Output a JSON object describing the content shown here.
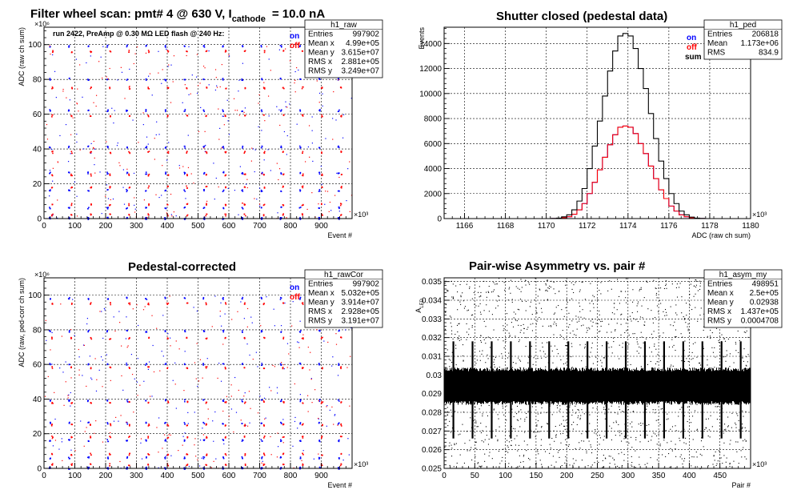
{
  "chart_data": [
    {
      "type": "scatter",
      "title": "Filter wheel scan: pmt#   4 @   630 V, I",
      "title_sub": "cathode",
      "title_tail": "= 10.0 nA",
      "annotation": "run 2422, PreAmp @ 0.30 MΩ   LED flash @  240 Hz:",
      "xlabel": "Event #",
      "ylabel": "ADC (raw ch sum)",
      "x_multiplier": "×10³",
      "y_multiplier": "×10⁶",
      "xlim": [
        0,
        1000
      ],
      "ylim": [
        0,
        110
      ],
      "xticks": [
        "0",
        "100",
        "200",
        "300",
        "400",
        "500",
        "600",
        "700",
        "800",
        "900"
      ],
      "xtick_values": [
        0,
        100,
        200,
        300,
        400,
        500,
        600,
        700,
        800,
        900
      ],
      "yticks": [
        "0",
        "20",
        "40",
        "60",
        "80",
        "100"
      ],
      "ytick_values": [
        0,
        20,
        40,
        60,
        80,
        100
      ],
      "grid": true,
      "legend": [
        "on",
        "off"
      ],
      "stats": {
        "name": "h1_raw",
        "rows": [
          [
            "Entries",
            "997902"
          ],
          [
            "Mean x",
            "4.99e+05"
          ],
          [
            "Mean y",
            "3.615e+07"
          ],
          [
            "RMS x",
            "2.881e+05"
          ],
          [
            "RMS y",
            "3.249e+07"
          ]
        ]
      },
      "series": [
        {
          "name": "on",
          "color": "#0000ff",
          "levels": [
            0,
            6,
            16,
            26,
            41,
            62,
            80,
            99
          ]
        },
        {
          "name": "off",
          "color": "#ff0000",
          "levels": [
            2,
            8,
            18,
            25,
            38,
            59,
            75,
            96
          ]
        }
      ],
      "step_events": 62.5
    },
    {
      "type": "line",
      "title": "Shutter closed (pedestal data)",
      "xlabel": "ADC (raw ch sum)",
      "ylabel": "Events",
      "x_multiplier": "×10³",
      "xlim": [
        1165,
        1180
      ],
      "ylim": [
        0,
        15300
      ],
      "xticks": [
        "1166",
        "1168",
        "1170",
        "1172",
        "1174",
        "1176",
        "1178",
        "1180"
      ],
      "xtick_values": [
        1166,
        1168,
        1170,
        1172,
        1174,
        1176,
        1178,
        1180
      ],
      "yticks": [
        "0",
        "2000",
        "4000",
        "6000",
        "8000",
        "10000",
        "12000",
        "14000"
      ],
      "ytick_values": [
        0,
        2000,
        4000,
        6000,
        8000,
        10000,
        12000,
        14000
      ],
      "grid": true,
      "legend": [
        "on",
        "off",
        "sum"
      ],
      "stats": {
        "name": "h1_ped",
        "rows": [
          [
            "Entries",
            "206818"
          ],
          [
            "Mean",
            "1.173e+06"
          ],
          [
            "RMS",
            "834.9"
          ]
        ]
      },
      "bin_edges_start": 1165,
      "bin_width": 0.25,
      "series": [
        {
          "name": "on",
          "color": "#0000ff",
          "values": [
            0,
            0,
            0,
            0,
            0,
            0,
            0,
            0,
            0,
            0,
            0,
            0,
            0,
            0,
            0,
            0,
            0,
            0,
            0,
            0,
            0,
            5,
            20,
            70,
            150,
            350,
            700,
            1200,
            2000,
            2900,
            3900,
            4900,
            5900,
            6700,
            7300,
            7400,
            7300,
            6800,
            6000,
            5200,
            4200,
            3200,
            2300,
            1600,
            1000,
            600,
            300,
            150,
            60,
            20,
            5,
            0,
            0,
            0,
            0,
            0,
            0,
            0,
            0,
            0
          ]
        },
        {
          "name": "off",
          "color": "#ff0000",
          "values": [
            0,
            0,
            0,
            0,
            0,
            0,
            0,
            0,
            0,
            0,
            0,
            0,
            0,
            0,
            0,
            0,
            0,
            0,
            0,
            0,
            0,
            5,
            20,
            70,
            150,
            350,
            700,
            1200,
            2000,
            2900,
            3900,
            4900,
            5900,
            6700,
            7300,
            7400,
            7300,
            6800,
            6000,
            5200,
            4200,
            3200,
            2300,
            1600,
            1000,
            600,
            300,
            150,
            60,
            20,
            5,
            0,
            0,
            0,
            0,
            0,
            0,
            0,
            0,
            0
          ]
        },
        {
          "name": "sum",
          "color": "#000000",
          "values": [
            0,
            0,
            0,
            0,
            0,
            0,
            0,
            0,
            0,
            0,
            0,
            0,
            0,
            0,
            0,
            0,
            0,
            0,
            0,
            0,
            0,
            10,
            40,
            140,
            300,
            700,
            1400,
            2400,
            4000,
            5800,
            7800,
            9800,
            11800,
            13400,
            14600,
            14800,
            14600,
            13600,
            12000,
            10400,
            8400,
            6400,
            4600,
            3200,
            2000,
            1200,
            600,
            300,
            120,
            40,
            10,
            0,
            0,
            0,
            0,
            0,
            0,
            0,
            0,
            0
          ]
        }
      ]
    },
    {
      "type": "scatter",
      "title": "Pedestal-corrected",
      "xlabel": "Event #",
      "ylabel": "ADC (raw, ped-corr ch sum)",
      "x_multiplier": "×10³",
      "y_multiplier": "×10⁶",
      "xlim": [
        0,
        1000
      ],
      "ylim": [
        0,
        110
      ],
      "xticks": [
        "0",
        "100",
        "200",
        "300",
        "400",
        "500",
        "600",
        "700",
        "800",
        "900"
      ],
      "xtick_values": [
        0,
        100,
        200,
        300,
        400,
        500,
        600,
        700,
        800,
        900
      ],
      "yticks": [
        "0",
        "20",
        "40",
        "60",
        "80",
        "100"
      ],
      "ytick_values": [
        0,
        20,
        40,
        60,
        80,
        100
      ],
      "grid": true,
      "legend": [
        "on",
        "off"
      ],
      "stats": {
        "name": "h1_rawCor",
        "rows": [
          [
            "Entries",
            "997902"
          ],
          [
            "Mean x",
            "5.032e+05"
          ],
          [
            "Mean y",
            "3.914e+07"
          ],
          [
            "RMS x",
            "2.928e+05"
          ],
          [
            "RMS y",
            "3.191e+07"
          ]
        ]
      },
      "series": [
        {
          "name": "on",
          "color": "#0000ff",
          "levels": [
            0,
            6,
            16,
            26,
            39,
            60,
            79,
            98
          ]
        },
        {
          "name": "off",
          "color": "#ff0000",
          "levels": [
            2,
            8,
            18,
            25,
            38,
            58,
            75,
            95
          ]
        }
      ],
      "step_events": 62.5
    },
    {
      "type": "scatter",
      "title": "Pair-wise Asymmetry vs. pair #",
      "xlabel": "Pair #",
      "ylabel": "A_LED",
      "x_multiplier": "×10³",
      "xlim": [
        0,
        500
      ],
      "ylim": [
        0.025,
        0.0352
      ],
      "xticks": [
        "0",
        "50",
        "100",
        "150",
        "200",
        "250",
        "300",
        "350",
        "400",
        "450"
      ],
      "xtick_values": [
        0,
        50,
        100,
        150,
        200,
        250,
        300,
        350,
        400,
        450
      ],
      "yticks": [
        "0.025",
        "0.026",
        "0.027",
        "0.028",
        "0.029",
        "0.03",
        "0.031",
        "0.032",
        "0.033",
        "0.034",
        "0.035"
      ],
      "ytick_values": [
        0.025,
        0.026,
        0.027,
        0.028,
        0.029,
        0.03,
        0.031,
        0.032,
        0.033,
        0.034,
        0.035
      ],
      "grid": true,
      "stats": {
        "name": "h1_asym_my",
        "rows": [
          [
            "Entries",
            "498951"
          ],
          [
            "Mean x",
            "2.5e+05"
          ],
          [
            "Mean y",
            "0.02938"
          ],
          [
            "RMS x",
            "1.437e+05"
          ],
          [
            "RMS y",
            "0.0004708"
          ]
        ]
      },
      "series": [
        {
          "name": "asym",
          "color": "#000000",
          "band": [
            0.0285,
            0.0303
          ],
          "spike_interval": 31.25
        }
      ]
    }
  ]
}
